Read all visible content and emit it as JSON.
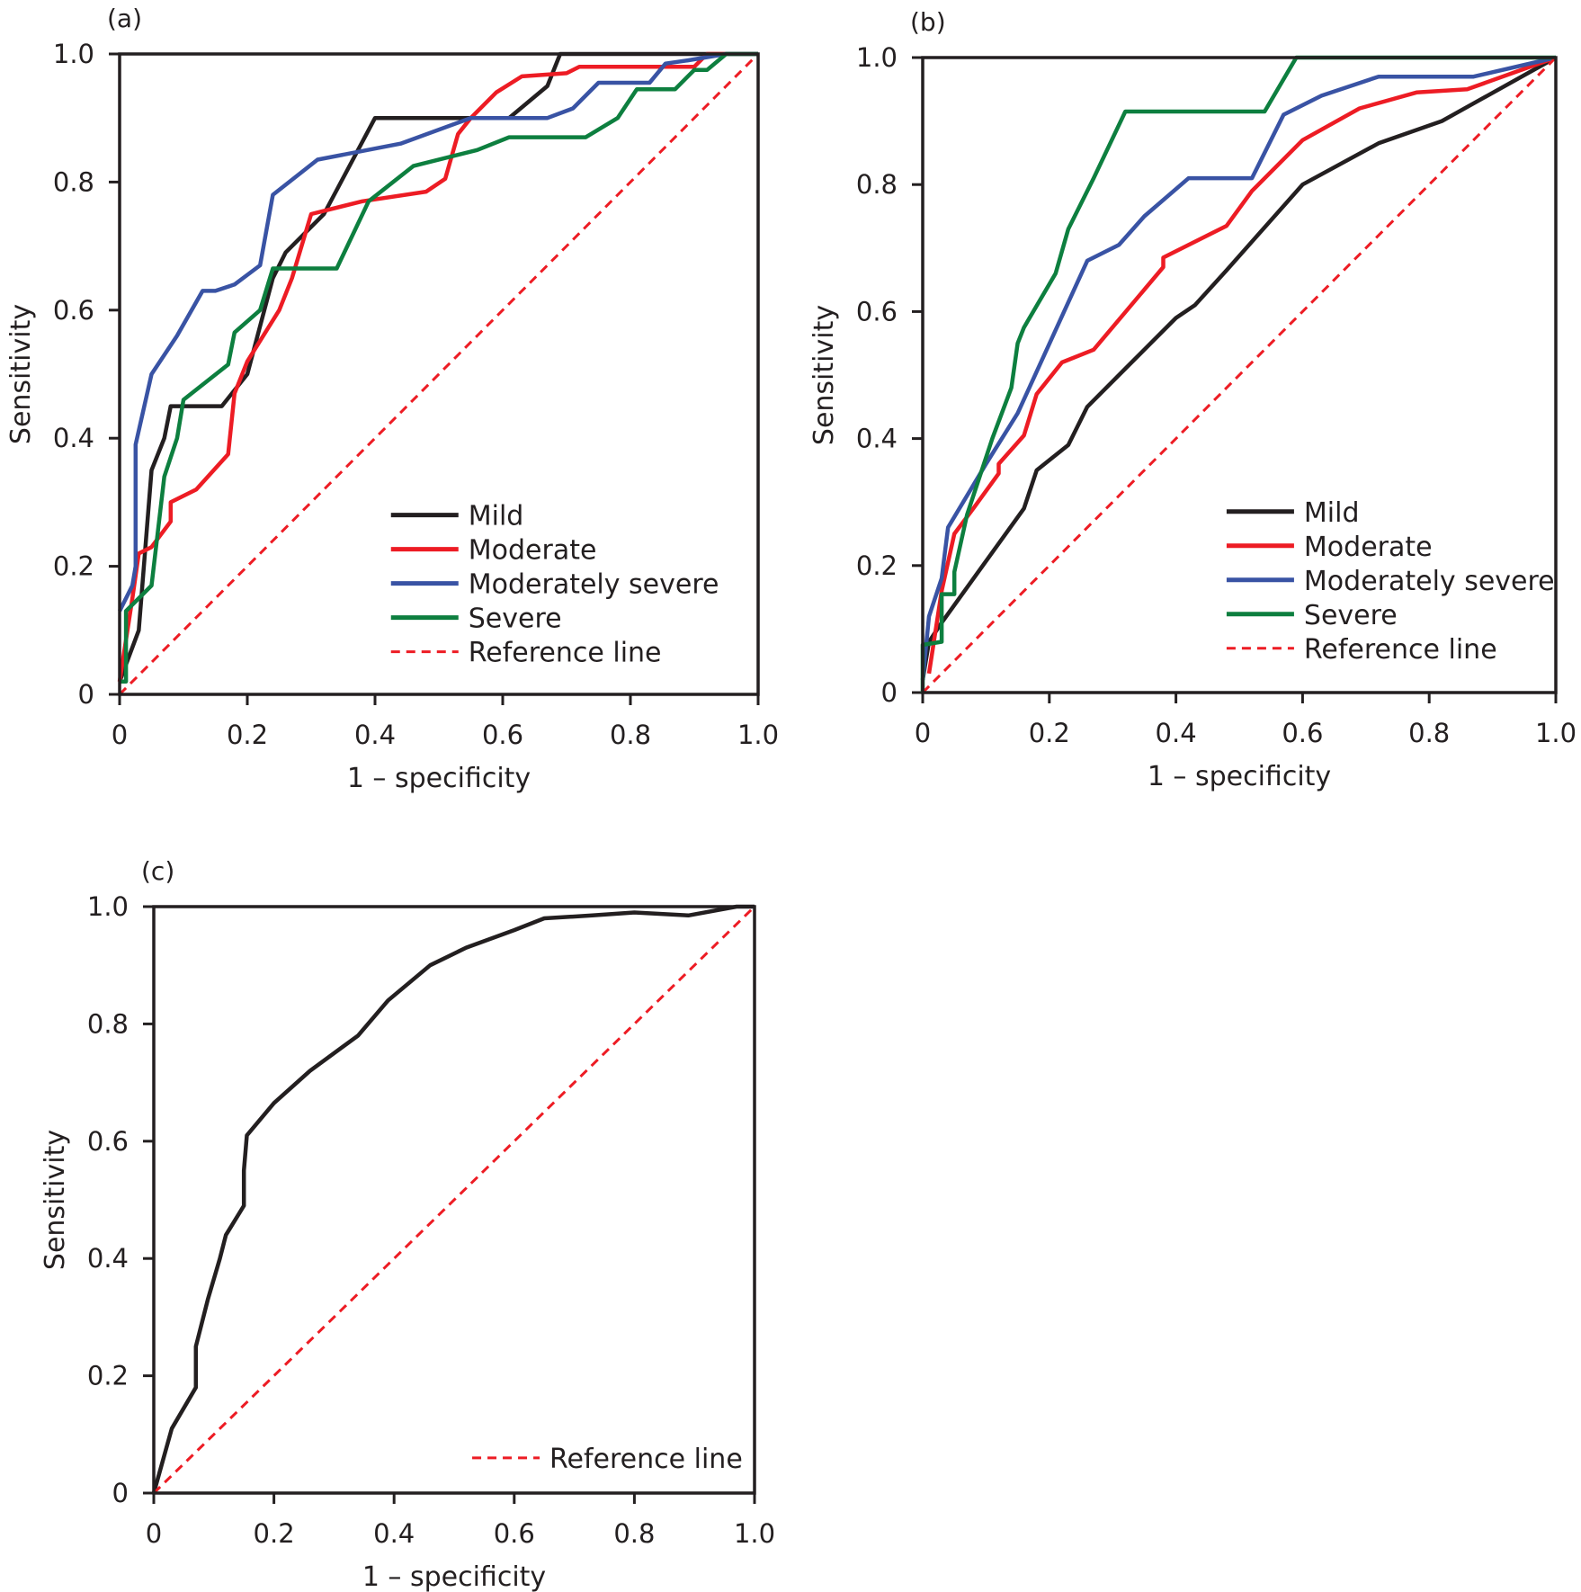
{
  "chart_data": [
    {
      "panel_label": "(a)",
      "type": "line",
      "xlabel": "1 – specificity",
      "ylabel": "Sensitivity",
      "xlim": [
        0,
        1
      ],
      "ylim": [
        0,
        1
      ],
      "xticks": [
        "0",
        "0.2",
        "0.4",
        "0.6",
        "0.8",
        "1.0"
      ],
      "yticks": [
        "0",
        "0.2",
        "0.4",
        "0.6",
        "0.8",
        "1.0"
      ],
      "grid": false,
      "legend_placement": "bottom-right",
      "series": [
        {
          "name": "Mild",
          "color": "#231f20",
          "style": "solid",
          "points": [
            [
              0,
              0.02
            ],
            [
              0.03,
              0.1
            ],
            [
              0.05,
              0.35
            ],
            [
              0.07,
              0.4
            ],
            [
              0.08,
              0.45
            ],
            [
              0.16,
              0.45
            ],
            [
              0.2,
              0.5
            ],
            [
              0.24,
              0.65
            ],
            [
              0.26,
              0.69
            ],
            [
              0.32,
              0.75
            ],
            [
              0.4,
              0.9
            ],
            [
              0.61,
              0.9
            ],
            [
              0.67,
              0.95
            ],
            [
              0.69,
              1.0
            ],
            [
              1,
              1
            ]
          ]
        },
        {
          "name": "Moderate",
          "color": "#ed1c24",
          "style": "solid",
          "points": [
            [
              0,
              0.02
            ],
            [
              0.02,
              0.15
            ],
            [
              0.03,
              0.22
            ],
            [
              0.05,
              0.23
            ],
            [
              0.08,
              0.27
            ],
            [
              0.08,
              0.3
            ],
            [
              0.12,
              0.32
            ],
            [
              0.17,
              0.375
            ],
            [
              0.18,
              0.47
            ],
            [
              0.2,
              0.52
            ],
            [
              0.25,
              0.6
            ],
            [
              0.27,
              0.65
            ],
            [
              0.3,
              0.75
            ],
            [
              0.38,
              0.77
            ],
            [
              0.48,
              0.785
            ],
            [
              0.51,
              0.805
            ],
            [
              0.53,
              0.875
            ],
            [
              0.55,
              0.9
            ],
            [
              0.59,
              0.94
            ],
            [
              0.63,
              0.965
            ],
            [
              0.7,
              0.97
            ],
            [
              0.72,
              0.98
            ],
            [
              0.9,
              0.98
            ],
            [
              0.92,
              1.0
            ],
            [
              1,
              1
            ]
          ]
        },
        {
          "name": "Moderately severe",
          "color": "#3953a4",
          "style": "solid",
          "points": [
            [
              0,
              0.13
            ],
            [
              0.02,
              0.17
            ],
            [
              0.025,
              0.2
            ],
            [
              0.025,
              0.39
            ],
            [
              0.05,
              0.5
            ],
            [
              0.07,
              0.53
            ],
            [
              0.09,
              0.56
            ],
            [
              0.13,
              0.63
            ],
            [
              0.15,
              0.63
            ],
            [
              0.18,
              0.64
            ],
            [
              0.22,
              0.67
            ],
            [
              0.24,
              0.78
            ],
            [
              0.31,
              0.835
            ],
            [
              0.44,
              0.86
            ],
            [
              0.55,
              0.9
            ],
            [
              0.67,
              0.9
            ],
            [
              0.71,
              0.915
            ],
            [
              0.75,
              0.955
            ],
            [
              0.83,
              0.955
            ],
            [
              0.855,
              0.985
            ],
            [
              0.89,
              0.99
            ],
            [
              0.95,
              1.0
            ],
            [
              1,
              1
            ]
          ]
        },
        {
          "name": "Severe",
          "color": "#0d7f3f",
          "style": "solid",
          "points": [
            [
              0,
              0.02
            ],
            [
              0.01,
              0.02
            ],
            [
              0.01,
              0.13
            ],
            [
              0.05,
              0.17
            ],
            [
              0.07,
              0.34
            ],
            [
              0.09,
              0.4
            ],
            [
              0.1,
              0.46
            ],
            [
              0.17,
              0.515
            ],
            [
              0.18,
              0.565
            ],
            [
              0.22,
              0.6
            ],
            [
              0.24,
              0.665
            ],
            [
              0.34,
              0.665
            ],
            [
              0.39,
              0.77
            ],
            [
              0.46,
              0.825
            ],
            [
              0.56,
              0.85
            ],
            [
              0.61,
              0.87
            ],
            [
              0.73,
              0.87
            ],
            [
              0.78,
              0.9
            ],
            [
              0.81,
              0.945
            ],
            [
              0.87,
              0.945
            ],
            [
              0.9,
              0.975
            ],
            [
              0.92,
              0.975
            ],
            [
              0.95,
              1.0
            ],
            [
              1,
              1
            ]
          ]
        },
        {
          "name": "Reference line",
          "color": "#ed1c24",
          "style": "dashed",
          "points": [
            [
              0,
              0
            ],
            [
              1,
              1
            ]
          ]
        }
      ]
    },
    {
      "panel_label": "(b)",
      "type": "line",
      "xlabel": "1 – specificity",
      "ylabel": "Sensitivity",
      "xlim": [
        0,
        1
      ],
      "ylim": [
        0,
        1
      ],
      "xticks": [
        "0",
        "0.2",
        "0.4",
        "0.6",
        "0.8",
        "1.0"
      ],
      "yticks": [
        "0",
        "0.2",
        "0.4",
        "0.6",
        "0.8",
        "1.0"
      ],
      "grid": false,
      "legend_placement": "bottom-right",
      "series": [
        {
          "name": "Mild",
          "color": "#231f20",
          "style": "solid",
          "points": [
            [
              0,
              0.02
            ],
            [
              0.01,
              0.08
            ],
            [
              0.03,
              0.11
            ],
            [
              0.16,
              0.29
            ],
            [
              0.18,
              0.35
            ],
            [
              0.23,
              0.39
            ],
            [
              0.26,
              0.45
            ],
            [
              0.32,
              0.51
            ],
            [
              0.38,
              0.57
            ],
            [
              0.4,
              0.59
            ],
            [
              0.43,
              0.61
            ],
            [
              0.48,
              0.665
            ],
            [
              0.6,
              0.8
            ],
            [
              0.72,
              0.865
            ],
            [
              0.82,
              0.9
            ],
            [
              1,
              1
            ]
          ]
        },
        {
          "name": "Moderate",
          "color": "#ed1c24",
          "style": "solid",
          "points": [
            [
              0.01,
              0.03
            ],
            [
              0.03,
              0.16
            ],
            [
              0.05,
              0.25
            ],
            [
              0.08,
              0.29
            ],
            [
              0.12,
              0.345
            ],
            [
              0.12,
              0.36
            ],
            [
              0.16,
              0.405
            ],
            [
              0.18,
              0.47
            ],
            [
              0.22,
              0.52
            ],
            [
              0.27,
              0.54
            ],
            [
              0.38,
              0.67
            ],
            [
              0.38,
              0.685
            ],
            [
              0.48,
              0.735
            ],
            [
              0.52,
              0.79
            ],
            [
              0.6,
              0.87
            ],
            [
              0.69,
              0.92
            ],
            [
              0.78,
              0.945
            ],
            [
              0.86,
              0.95
            ],
            [
              1,
              1
            ]
          ]
        },
        {
          "name": "Moderately severe",
          "color": "#3953a4",
          "style": "solid",
          "points": [
            [
              0,
              0.02
            ],
            [
              0.01,
              0.12
            ],
            [
              0.03,
              0.18
            ],
            [
              0.04,
              0.26
            ],
            [
              0.1,
              0.36
            ],
            [
              0.15,
              0.44
            ],
            [
              0.26,
              0.68
            ],
            [
              0.31,
              0.705
            ],
            [
              0.35,
              0.75
            ],
            [
              0.42,
              0.81
            ],
            [
              0.52,
              0.81
            ],
            [
              0.57,
              0.91
            ],
            [
              0.63,
              0.94
            ],
            [
              0.72,
              0.97
            ],
            [
              0.87,
              0.97
            ],
            [
              1,
              1
            ]
          ]
        },
        {
          "name": "Severe",
          "color": "#0d7f3f",
          "style": "solid",
          "points": [
            [
              0,
              0
            ],
            [
              0,
              0.075
            ],
            [
              0.03,
              0.08
            ],
            [
              0.03,
              0.155
            ],
            [
              0.05,
              0.155
            ],
            [
              0.05,
              0.19
            ],
            [
              0.07,
              0.28
            ],
            [
              0.11,
              0.4
            ],
            [
              0.14,
              0.48
            ],
            [
              0.15,
              0.55
            ],
            [
              0.16,
              0.575
            ],
            [
              0.21,
              0.66
            ],
            [
              0.23,
              0.73
            ],
            [
              0.27,
              0.81
            ],
            [
              0.32,
              0.915
            ],
            [
              0.54,
              0.915
            ],
            [
              0.59,
              1.0
            ],
            [
              1,
              1
            ]
          ]
        },
        {
          "name": "Reference line",
          "color": "#ed1c24",
          "style": "dashed",
          "points": [
            [
              0,
              0
            ],
            [
              1,
              1
            ]
          ]
        }
      ]
    },
    {
      "panel_label": "(c)",
      "type": "line",
      "xlabel": "1 – specificity",
      "ylabel": "Sensitivity",
      "xlim": [
        0,
        1
      ],
      "ylim": [
        0,
        1
      ],
      "xticks": [
        "0",
        "0.2",
        "0.4",
        "0.6",
        "0.8",
        "1.0"
      ],
      "yticks": [
        "0",
        "0.2",
        "0.4",
        "0.6",
        "0.8",
        "1.0"
      ],
      "grid": false,
      "legend_placement": "bottom-right",
      "series": [
        {
          "color": "#231f20",
          "style": "solid",
          "in_legend": false,
          "points": [
            [
              0,
              0
            ],
            [
              0.03,
              0.11
            ],
            [
              0.07,
              0.18
            ],
            [
              0.07,
              0.25
            ],
            [
              0.09,
              0.33
            ],
            [
              0.11,
              0.4
            ],
            [
              0.12,
              0.44
            ],
            [
              0.15,
              0.49
            ],
            [
              0.15,
              0.55
            ],
            [
              0.155,
              0.61
            ],
            [
              0.2,
              0.665
            ],
            [
              0.26,
              0.72
            ],
            [
              0.34,
              0.78
            ],
            [
              0.39,
              0.84
            ],
            [
              0.46,
              0.9
            ],
            [
              0.52,
              0.93
            ],
            [
              0.6,
              0.96
            ],
            [
              0.65,
              0.98
            ],
            [
              0.73,
              0.985
            ],
            [
              0.8,
              0.99
            ],
            [
              0.89,
              0.985
            ],
            [
              0.97,
              1.0
            ],
            [
              1,
              1
            ]
          ]
        },
        {
          "name": "Reference line",
          "color": "#ed1c24",
          "style": "dashed",
          "points": [
            [
              0,
              0
            ],
            [
              1,
              1
            ]
          ]
        }
      ]
    }
  ]
}
